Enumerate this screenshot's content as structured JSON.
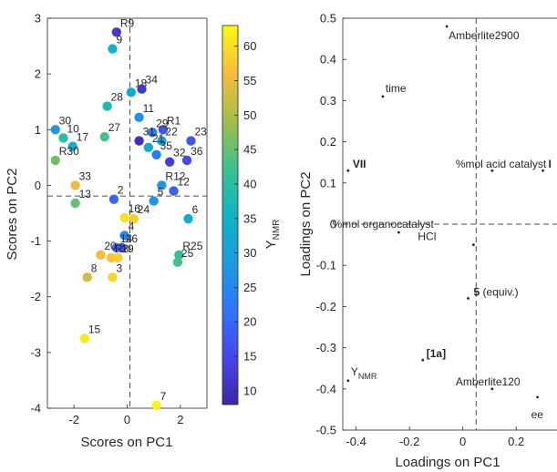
{
  "chart_data": [
    {
      "type": "scatter",
      "title": "",
      "xlabel": "Scores on PC1",
      "ylabel": "Scores on PC2",
      "xlim": [
        -3,
        3
      ],
      "ylim": [
        -4,
        3
      ],
      "xticks": [
        "-2",
        "0",
        "2"
      ],
      "yticks": [
        "3",
        "2",
        "1",
        "0",
        "-1",
        "-2",
        "-3",
        "-4"
      ],
      "grid": false,
      "zero_lines": true,
      "points": [
        {
          "label": "R9",
          "x": -0.4,
          "y": 2.75,
          "c": 12
        },
        {
          "label": "9",
          "x": -0.55,
          "y": 2.45,
          "c": 35
        },
        {
          "label": "18",
          "x": 0.15,
          "y": 1.67,
          "c": 33
        },
        {
          "label": "34",
          "x": 0.55,
          "y": 1.73,
          "c": 12
        },
        {
          "label": "28",
          "x": -0.75,
          "y": 1.42,
          "c": 38
        },
        {
          "label": "11",
          "x": 0.45,
          "y": 1.22,
          "c": 27
        },
        {
          "label": "R1",
          "x": 1.35,
          "y": 1.0,
          "c": 17
        },
        {
          "label": "29",
          "x": 0.95,
          "y": 0.95,
          "c": 22
        },
        {
          "label": "30",
          "x": -2.7,
          "y": 1.0,
          "c": 28
        },
        {
          "label": "10",
          "x": -2.4,
          "y": 0.85,
          "c": 40
        },
        {
          "label": "17",
          "x": -2.05,
          "y": 0.7,
          "c": 35
        },
        {
          "label": "27",
          "x": -0.85,
          "y": 0.87,
          "c": 43
        },
        {
          "label": "31",
          "x": 0.45,
          "y": 0.8,
          "c": 10
        },
        {
          "label": "22",
          "x": 1.3,
          "y": 0.8,
          "c": 30
        },
        {
          "label": "21",
          "x": 0.8,
          "y": 0.68,
          "c": 33
        },
        {
          "label": "23",
          "x": 2.4,
          "y": 0.8,
          "c": 17
        },
        {
          "label": "R30",
          "x": -2.7,
          "y": 0.45,
          "c": 46
        },
        {
          "label": "35",
          "x": 1.1,
          "y": 0.55,
          "c": 24
        },
        {
          "label": "32",
          "x": 1.6,
          "y": 0.42,
          "c": 13
        },
        {
          "label": "36",
          "x": 2.25,
          "y": 0.45,
          "c": 15
        },
        {
          "label": "33",
          "x": -1.95,
          "y": 0.0,
          "c": 55
        },
        {
          "label": "R12",
          "x": 1.3,
          "y": 0.0,
          "c": 28
        },
        {
          "label": "12",
          "x": 1.75,
          "y": -0.1,
          "c": 19
        },
        {
          "label": "13",
          "x": -1.95,
          "y": -0.32,
          "c": 45
        },
        {
          "label": "2",
          "x": -0.5,
          "y": -0.25,
          "c": 20
        },
        {
          "label": "5",
          "x": 1.0,
          "y": -0.28,
          "c": 27
        },
        {
          "label": "6",
          "x": 2.3,
          "y": -0.6,
          "c": 34
        },
        {
          "label": "16",
          "x": -0.1,
          "y": -0.58,
          "c": 60
        },
        {
          "label": "24",
          "x": 0.25,
          "y": -0.6,
          "c": 58
        },
        {
          "label": "4",
          "x": -0.1,
          "y": -0.9,
          "c": 25
        },
        {
          "label": "14",
          "x": -0.4,
          "y": -1.12,
          "c": 20
        },
        {
          "label": "26",
          "x": -0.2,
          "y": -1.12,
          "c": 16
        },
        {
          "label": "R25",
          "x": 1.95,
          "y": -1.25,
          "c": 41
        },
        {
          "label": "25",
          "x": 1.9,
          "y": -1.38,
          "c": 43
        },
        {
          "label": "20",
          "x": -1.0,
          "y": -1.25,
          "c": 56
        },
        {
          "label": "R3",
          "x": -0.6,
          "y": -1.3,
          "c": 57
        },
        {
          "label": "19",
          "x": -0.35,
          "y": -1.3,
          "c": 58
        },
        {
          "label": "8",
          "x": -1.5,
          "y": -1.65,
          "c": 53
        },
        {
          "label": "3",
          "x": -0.55,
          "y": -1.65,
          "c": 59
        },
        {
          "label": "15",
          "x": -1.6,
          "y": -2.75,
          "c": 61
        },
        {
          "label": "7",
          "x": 1.1,
          "y": -3.95,
          "c": 62
        }
      ],
      "colorbar": {
        "label": "Y",
        "label_sub": "NMR",
        "min": 8,
        "max": 63,
        "ticks": [
          "60",
          "55",
          "50",
          "45",
          "40",
          "35",
          "30",
          "25",
          "20",
          "15",
          "10"
        ]
      }
    },
    {
      "type": "scatter",
      "title": "",
      "xlabel": "Loadings on PC1",
      "ylabel": "Loadings on PC2",
      "xlim": [
        -0.45,
        0.3
      ],
      "ylim": [
        -0.5,
        0.5
      ],
      "xticks": [
        "-0.4",
        "-0.2",
        "0",
        "0.2"
      ],
      "yticks": [
        "0.5",
        "0.4",
        "0.3",
        "0.2",
        "0.1",
        "0",
        "-0.1",
        "-0.2",
        "-0.3",
        "-0.4",
        "-0.5"
      ],
      "grid": false,
      "zero_lines": true,
      "points": [
        {
          "label": "Amberlite2900",
          "x": -0.06,
          "y": 0.48
        },
        {
          "label": "time",
          "x": -0.3,
          "y": 0.31
        },
        {
          "label": "VII",
          "x": -0.43,
          "y": 0.13,
          "bold": true
        },
        {
          "label": "%mol acid catalyst",
          "x": 0.11,
          "y": 0.13
        },
        {
          "label": "I",
          "x": 0.3,
          "y": 0.13,
          "bold": true
        },
        {
          "label": "%mol organocatalyst",
          "x": -0.24,
          "y": -0.02
        },
        {
          "label": "HCl",
          "x": 0.04,
          "y": -0.05
        },
        {
          "label": "5",
          "label_suffix": " (equiv.)",
          "x": 0.02,
          "y": -0.18,
          "bold": true
        },
        {
          "label": "[1a]",
          "x": -0.15,
          "y": -0.33,
          "bold": true
        },
        {
          "label": "Y",
          "label_sub": "NMR",
          "x": -0.43,
          "y": -0.38
        },
        {
          "label": "Amberlite120",
          "x": 0.11,
          "y": -0.4
        },
        {
          "label": "ee",
          "x": 0.28,
          "y": -0.42
        }
      ]
    }
  ]
}
